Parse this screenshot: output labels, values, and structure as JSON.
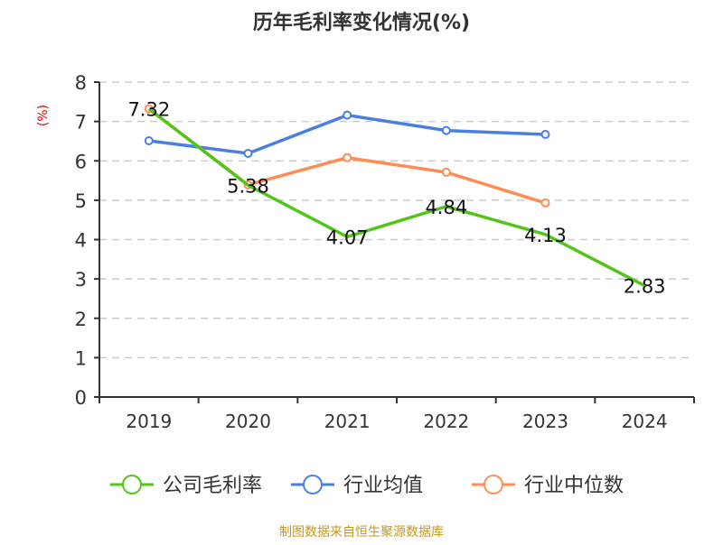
{
  "chart_data": {
    "type": "line",
    "title": "历年毛利率变化情况(%)",
    "ylabel": "(%)",
    "categories": [
      "2019",
      "2020",
      "2021",
      "2022",
      "2023",
      "2024"
    ],
    "ylim": [
      0,
      8
    ],
    "yticks": [
      0,
      1,
      2,
      3,
      4,
      5,
      6,
      7,
      8
    ],
    "grid": true,
    "legend_position": "bottom",
    "series": [
      {
        "name": "公司毛利率",
        "color": "#52c41a",
        "values": [
          7.32,
          5.38,
          4.07,
          4.84,
          4.13,
          2.83
        ],
        "labels": [
          "7.32",
          "5.38",
          "4.07",
          "4.84",
          "4.13",
          "2.83"
        ]
      },
      {
        "name": "行业均值",
        "color": "#4a7fe0",
        "values": [
          6.51,
          6.19,
          7.16,
          6.77,
          6.67,
          null
        ]
      },
      {
        "name": "行业中位数",
        "color": "#ff8c55",
        "values": [
          7.32,
          5.39,
          6.08,
          5.71,
          4.93,
          null
        ]
      }
    ]
  },
  "footer": {
    "source": "制图数据来自恒生聚源数据库"
  }
}
